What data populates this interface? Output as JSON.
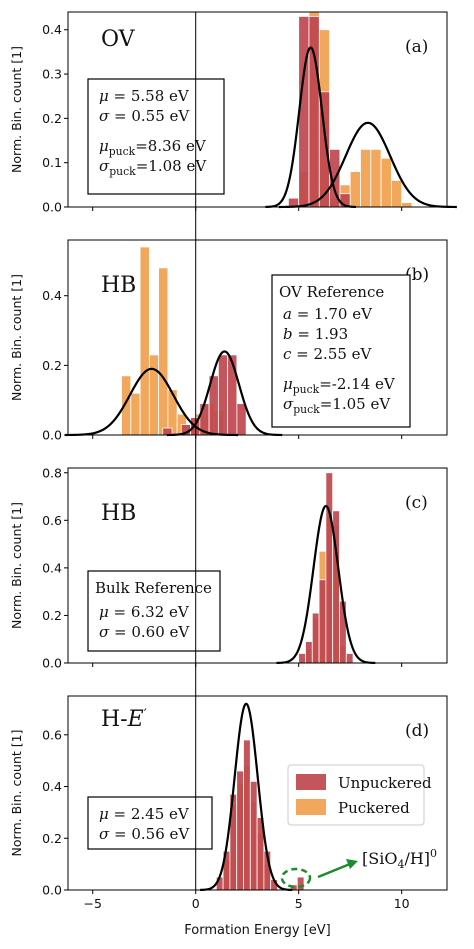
{
  "figure": {
    "xlabel": "Formation Energy [eV]",
    "ylabel": "Norm. Bin. count [1]",
    "xlim": [
      -6.2,
      12.2
    ],
    "xticks": [
      -5,
      0,
      5,
      10
    ],
    "vline_x": 0,
    "colors": {
      "unpuckered": "#c0474f",
      "puckered": "#f0a14f",
      "fit": "#000000",
      "arrow": "#1f8a2e",
      "frame": "#000000"
    },
    "legend": {
      "unpuckered": "Unpuckered",
      "puckered": "Puckered"
    },
    "annotation": {
      "label": "[SiO4/H]0",
      "text_main": "[SiO",
      "text_sub": "4",
      "text_tail": "/H]",
      "text_sup": "0"
    }
  },
  "chart_data": [
    {
      "type": "bar",
      "panel_label": "(a)",
      "defect_label": "OV",
      "ylim": [
        0,
        0.44
      ],
      "yticks": [
        0.0,
        0.1,
        0.2,
        0.3,
        0.4
      ],
      "bin_width": 0.5,
      "series": [
        {
          "name": "Unpuckered",
          "x": [
            4.5,
            5.0,
            5.5,
            6.0,
            6.5,
            7.0
          ],
          "values": [
            0.02,
            0.43,
            0.43,
            0.26,
            0.13,
            0.03
          ]
        },
        {
          "name": "Puckered",
          "x": [
            5.0,
            5.5,
            6.0,
            6.5,
            7.0,
            7.5,
            8.0,
            8.5,
            9.0,
            9.5,
            10.0
          ],
          "values": [
            0.08,
            0.44,
            0.4,
            0.02,
            0.05,
            0.08,
            0.13,
            0.13,
            0.11,
            0.06,
            0.01
          ]
        }
      ],
      "fits": [
        {
          "mu": 5.58,
          "sigma": 0.55,
          "amp": 0.36
        },
        {
          "mu": 8.36,
          "sigma": 1.08,
          "amp": 0.19
        }
      ],
      "textbox": {
        "lines": [
          {
            "sym": "μ",
            "sub": "",
            "text": " = 5.58 eV"
          },
          {
            "sym": "σ",
            "sub": "",
            "text": " = 0.55 eV"
          },
          {
            "sym": "",
            "sub": "",
            "text": ""
          },
          {
            "sym": "μ",
            "sub": "puck",
            "text": "=8.36 eV"
          },
          {
            "sym": "σ",
            "sub": "puck",
            "text": "=1.08 eV"
          }
        ]
      }
    },
    {
      "type": "bar",
      "panel_label": "(b)",
      "defect_label": "HB",
      "ylim": [
        0,
        0.56
      ],
      "yticks": [
        0.0,
        0.2,
        0.4
      ],
      "bin_width": 0.45,
      "series": [
        {
          "name": "Unpuckered",
          "x": [
            -1.6,
            -1.15,
            -0.7,
            -0.25,
            0.2,
            0.65,
            1.1,
            1.55,
            2.0
          ],
          "values": [
            0.02,
            0.0,
            0.03,
            0.05,
            0.09,
            0.17,
            0.23,
            0.23,
            0.09
          ]
        },
        {
          "name": "Puckered",
          "x": [
            -3.6,
            -3.15,
            -2.7,
            -2.25,
            -1.8,
            -1.35,
            -0.9,
            -0.45,
            0.0,
            0.45,
            0.9
          ],
          "values": [
            0.17,
            0.12,
            0.54,
            0.23,
            0.48,
            0.13,
            0.06,
            0.03,
            0.06,
            0.09,
            0.07
          ]
        }
      ],
      "fits": [
        {
          "mu": -2.14,
          "sigma": 1.05,
          "amp": 0.19
        },
        {
          "mu": 1.4,
          "sigma": 0.7,
          "amp": 0.24
        }
      ],
      "textbox": {
        "title": "OV Reference",
        "lines": [
          {
            "sym": "a",
            "sub": "",
            "text": " = 1.70 eV"
          },
          {
            "sym": "b",
            "sub": "",
            "text": " = 1.93"
          },
          {
            "sym": "c",
            "sub": "",
            "text": " = 2.55 eV"
          },
          {
            "sym": "",
            "sub": "",
            "text": ""
          },
          {
            "sym": "μ",
            "sub": "puck",
            "text": "=-2.14 eV"
          },
          {
            "sym": "σ",
            "sub": "puck",
            "text": "=1.05 eV"
          }
        ]
      }
    },
    {
      "type": "bar",
      "panel_label": "(c)",
      "defect_label": "HB",
      "ylim": [
        0,
        0.82
      ],
      "yticks": [
        0.0,
        0.2,
        0.4,
        0.6,
        0.8
      ],
      "bin_width": 0.33,
      "series": [
        {
          "name": "Unpuckered",
          "x": [
            5.0,
            5.33,
            5.66,
            5.99,
            6.32,
            6.65,
            6.98,
            7.31
          ],
          "values": [
            0.04,
            0.09,
            0.21,
            0.35,
            0.8,
            0.64,
            0.26,
            0.04
          ]
        },
        {
          "name": "Puckered",
          "x": [
            5.33,
            5.66,
            5.99,
            6.32,
            6.65,
            6.98
          ],
          "values": [
            0.06,
            0.19,
            0.47,
            0.62,
            0.58,
            0.07
          ]
        }
      ],
      "fits": [
        {
          "mu": 6.32,
          "sigma": 0.6,
          "amp": 0.66
        }
      ],
      "textbox": {
        "title": "Bulk Reference",
        "lines": [
          {
            "sym": "μ",
            "sub": "",
            "text": " = 6.32 eV"
          },
          {
            "sym": "σ",
            "sub": "",
            "text": " = 0.60 eV"
          }
        ]
      }
    },
    {
      "type": "bar",
      "panel_label": "(d)",
      "defect_label": "H-E′",
      "ylim": [
        0,
        0.75
      ],
      "yticks": [
        0.0,
        0.2,
        0.4,
        0.6
      ],
      "bin_width": 0.33,
      "series": [
        {
          "name": "Unpuckered",
          "x": [
            1.0,
            1.33,
            1.66,
            1.99,
            2.32,
            2.65,
            2.98,
            3.31,
            3.64,
            4.6,
            4.93
          ],
          "values": [
            0.05,
            0.15,
            0.37,
            0.46,
            0.58,
            0.42,
            0.28,
            0.15,
            0.04,
            0.02,
            0.05
          ]
        },
        {
          "name": "Puckered",
          "x": [
            1.33,
            1.66,
            1.99,
            2.32,
            2.65,
            2.98,
            3.31
          ],
          "values": [
            0.12,
            0.33,
            0.41,
            0.48,
            0.34,
            0.22,
            0.1
          ]
        }
      ],
      "fits": [
        {
          "mu": 2.45,
          "sigma": 0.56,
          "amp": 0.72
        }
      ],
      "textbox": {
        "lines": [
          {
            "sym": "μ",
            "sub": "",
            "text": " = 2.45 eV"
          },
          {
            "sym": "σ",
            "sub": "",
            "text": " = 0.56 eV"
          }
        ]
      },
      "legend_shown": true,
      "annotation_shown": true
    }
  ]
}
